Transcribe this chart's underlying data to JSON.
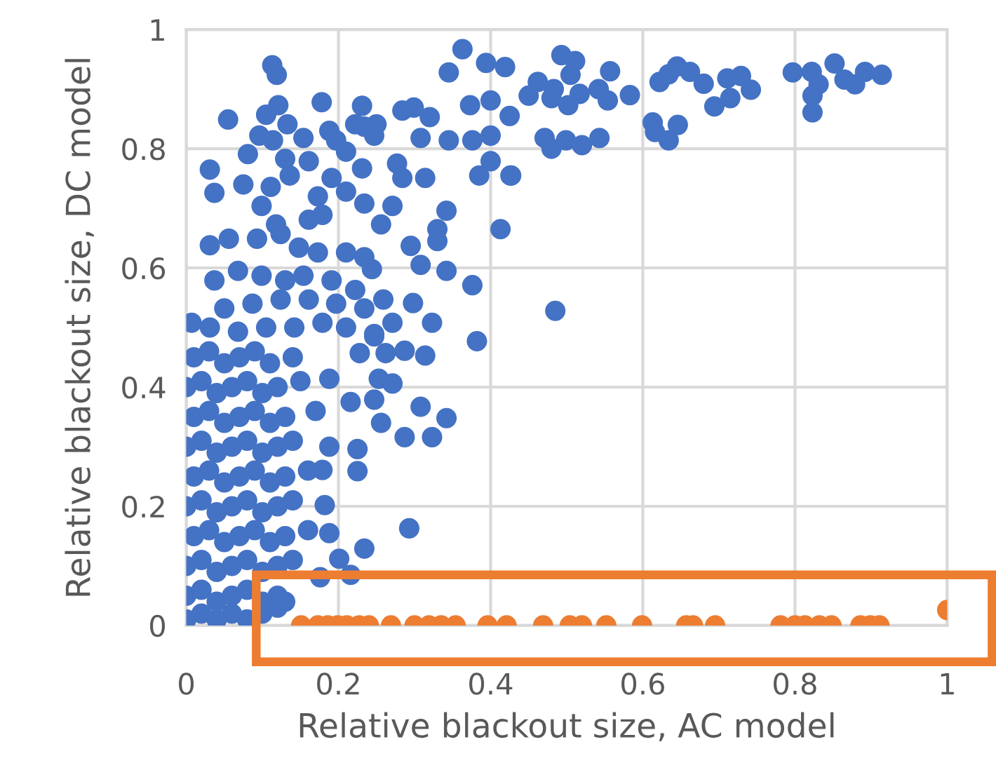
{
  "chart_data": {
    "type": "scatter",
    "xlabel": "Relative blackout size, AC model",
    "ylabel": "Relative blackout size, DC model",
    "xlim": [
      0,
      1
    ],
    "ylim": [
      0,
      1
    ],
    "xticks": [
      0,
      0.2,
      0.4,
      0.6,
      0.8,
      1
    ],
    "yticks": [
      0,
      0.2,
      0.4,
      0.6,
      0.8,
      1
    ],
    "grid": true,
    "marker": "circle",
    "series": [
      {
        "color": "#4472c4",
        "x": [
          0.493,
          0.511,
          0.505,
          0.462,
          0.45,
          0.483,
          0.48,
          0.502,
          0.517,
          0.542,
          0.554,
          0.557,
          0.583,
          0.471,
          0.48,
          0.499,
          0.52,
          0.543,
          0.419,
          0.425,
          0.426,
          0.413,
          0.485,
          0.613,
          0.616,
          0.634,
          0.646,
          0.622,
          0.634,
          0.645,
          0.662,
          0.68,
          0.711,
          0.729,
          0.742,
          0.694,
          0.715,
          0.797,
          0.822,
          0.831,
          0.823,
          0.823,
          0.852,
          0.865,
          0.879,
          0.892,
          0.914,
          0.363,
          0.345,
          0.394,
          0.373,
          0.4,
          0.113,
          0.119,
          0.055,
          0.121,
          0.105,
          0.133,
          0.178,
          0.096,
          0.114,
          0.154,
          0.231,
          0.25,
          0.222,
          0.284,
          0.299,
          0.32,
          0.308,
          0.345,
          0.376,
          0.4,
          0.4,
          0.385,
          0.427,
          0.342,
          0.33,
          0.33,
          0.295,
          0.308,
          0.342,
          0.376,
          0.382,
          0.323,
          0.298,
          0.031,
          0.037,
          0.081,
          0.075,
          0.111,
          0.136,
          0.13,
          0.161,
          0.188,
          0.197,
          0.234,
          0.247,
          0.21,
          0.231,
          0.191,
          0.173,
          0.21,
          0.234,
          0.271,
          0.256,
          0.284,
          0.314,
          0.277,
          0.161,
          0.179,
          0.118,
          0.099,
          0.031,
          0.056,
          0.093,
          0.124,
          0.148,
          0.173,
          0.21,
          0.234,
          0.244,
          0.037,
          0.068,
          0.099,
          0.13,
          0.154,
          0.191,
          0.222,
          0.05,
          0.087,
          0.124,
          0.161,
          0.197,
          0.234,
          0.259,
          0.271,
          0.247,
          0.007,
          0.031,
          0.068,
          0.105,
          0.142,
          0.179,
          0.21,
          0.314,
          0.287,
          0.262,
          0.247,
          0.228,
          0.188,
          0.253,
          0.271,
          0.247,
          0.216,
          0.308,
          0.342,
          0.323,
          0.287,
          0.256,
          0.225,
          0.225,
          0.188,
          0.179,
          0.182,
          0.188,
          0.234,
          0.293,
          0.201,
          0.216,
          0.176,
          0.01,
          0.03,
          0.05,
          0.07,
          0.09,
          0.11,
          0.14,
          0.0,
          0.02,
          0.04,
          0.06,
          0.08,
          0.1,
          0.12,
          0.15,
          0.01,
          0.03,
          0.05,
          0.07,
          0.09,
          0.11,
          0.13,
          0.17,
          0.0,
          0.02,
          0.04,
          0.06,
          0.08,
          0.1,
          0.12,
          0.14,
          0.01,
          0.03,
          0.05,
          0.07,
          0.09,
          0.11,
          0.13,
          0.16,
          0.0,
          0.02,
          0.04,
          0.06,
          0.08,
          0.1,
          0.12,
          0.14,
          0.01,
          0.03,
          0.05,
          0.07,
          0.09,
          0.11,
          0.13,
          0.16,
          0.0,
          0.02,
          0.04,
          0.06,
          0.08,
          0.1,
          0.12,
          0.14,
          0.0,
          0.02,
          0.04,
          0.06,
          0.08,
          0.1,
          0.12,
          0.13,
          0.0,
          0.02,
          0.04,
          0.06,
          0.08,
          0.1,
          0.12
        ],
        "values": [
          0.957,
          0.947,
          0.924,
          0.912,
          0.889,
          0.9,
          0.885,
          0.873,
          0.892,
          0.9,
          0.881,
          0.93,
          0.89,
          0.818,
          0.8,
          0.814,
          0.806,
          0.818,
          0.937,
          0.855,
          0.755,
          0.665,
          0.528,
          0.844,
          0.828,
          0.814,
          0.84,
          0.912,
          0.925,
          0.938,
          0.929,
          0.909,
          0.918,
          0.922,
          0.899,
          0.871,
          0.885,
          0.928,
          0.929,
          0.908,
          0.889,
          0.861,
          0.943,
          0.916,
          0.908,
          0.929,
          0.924,
          0.967,
          0.928,
          0.944,
          0.873,
          0.881,
          0.94,
          0.924,
          0.849,
          0.873,
          0.857,
          0.841,
          0.878,
          0.822,
          0.814,
          0.818,
          0.872,
          0.841,
          0.841,
          0.864,
          0.869,
          0.853,
          0.818,
          0.814,
          0.814,
          0.822,
          0.779,
          0.755,
          0.755,
          0.696,
          0.665,
          0.645,
          0.637,
          0.605,
          0.595,
          0.571,
          0.477,
          0.508,
          0.541,
          0.765,
          0.726,
          0.791,
          0.74,
          0.736,
          0.755,
          0.783,
          0.779,
          0.83,
          0.814,
          0.837,
          0.822,
          0.795,
          0.767,
          0.751,
          0.72,
          0.728,
          0.708,
          0.704,
          0.673,
          0.751,
          0.751,
          0.775,
          0.681,
          0.689,
          0.673,
          0.704,
          0.638,
          0.649,
          0.649,
          0.657,
          0.634,
          0.626,
          0.626,
          0.618,
          0.598,
          0.579,
          0.595,
          0.587,
          0.579,
          0.587,
          0.579,
          0.563,
          0.532,
          0.54,
          0.547,
          0.547,
          0.54,
          0.532,
          0.547,
          0.508,
          0.489,
          0.508,
          0.5,
          0.493,
          0.5,
          0.5,
          0.508,
          0.5,
          0.453,
          0.461,
          0.457,
          0.485,
          0.457,
          0.414,
          0.414,
          0.406,
          0.379,
          0.375,
          0.367,
          0.348,
          0.316,
          0.316,
          0.34,
          0.296,
          0.259,
          0.3,
          0.261,
          0.202,
          0.155,
          0.129,
          0.163,
          0.112,
          0.085,
          0.081,
          0.45,
          0.46,
          0.44,
          0.45,
          0.46,
          0.44,
          0.45,
          0.4,
          0.41,
          0.39,
          0.4,
          0.41,
          0.39,
          0.4,
          0.41,
          0.35,
          0.36,
          0.34,
          0.35,
          0.36,
          0.34,
          0.35,
          0.36,
          0.3,
          0.31,
          0.29,
          0.3,
          0.31,
          0.29,
          0.3,
          0.31,
          0.25,
          0.26,
          0.24,
          0.25,
          0.26,
          0.24,
          0.25,
          0.26,
          0.2,
          0.21,
          0.19,
          0.2,
          0.21,
          0.19,
          0.2,
          0.21,
          0.15,
          0.16,
          0.14,
          0.15,
          0.16,
          0.14,
          0.15,
          0.16,
          0.1,
          0.11,
          0.09,
          0.1,
          0.11,
          0.09,
          0.1,
          0.11,
          0.05,
          0.06,
          0.04,
          0.05,
          0.06,
          0.04,
          0.05,
          0.04,
          0.01,
          0.02,
          0.01,
          0.02,
          0.01,
          0.02,
          0.03
        ]
      },
      {
        "color": "#ed7d31",
        "x": [
          0.151,
          0.173,
          0.186,
          0.199,
          0.211,
          0.227,
          0.24,
          0.269,
          0.3,
          0.319,
          0.335,
          0.354,
          0.396,
          0.421,
          0.469,
          0.504,
          0.52,
          0.552,
          0.599,
          0.657,
          0.666,
          0.695,
          0.781,
          0.8,
          0.813,
          0.832,
          0.848,
          0.886,
          0.899,
          0.911,
          1.0
        ],
        "values": [
          0,
          0,
          0,
          0,
          0,
          0,
          0,
          0,
          0,
          0,
          0,
          0,
          0,
          0,
          0,
          0,
          0,
          0,
          0,
          0,
          0,
          0,
          0,
          0,
          0,
          0,
          0,
          0,
          0,
          0,
          0.026
        ]
      }
    ]
  }
}
